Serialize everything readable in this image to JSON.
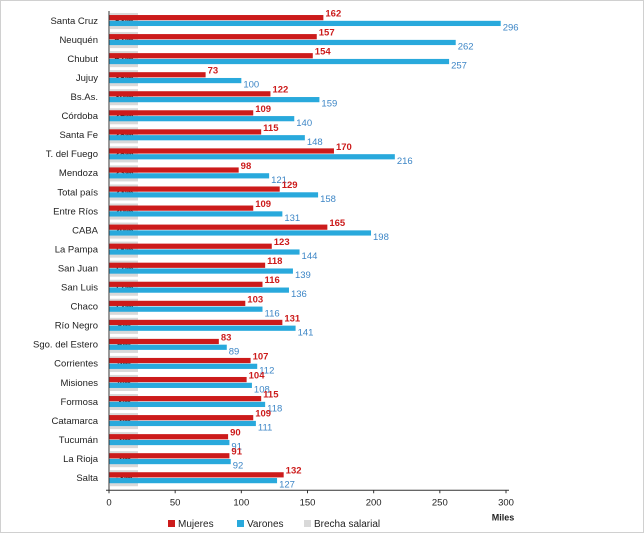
{
  "chart_data": {
    "type": "bar",
    "orientation": "horizontal",
    "categories": [
      "Santa Cruz",
      "Neuquén",
      "Chubut",
      "Jujuy",
      "Bs.As.",
      "Córdoba",
      "Santa Fe",
      "T. del Fuego",
      "Mendoza",
      "Total país",
      "Entre Ríos",
      "CABA",
      "La Pampa",
      "San Juan",
      "San Luis",
      "Chaco",
      "Río Negro",
      "Sgo. del Estero",
      "Corrientes",
      "Misiones",
      "Formosa",
      "Catamarca",
      "Tucumán",
      "La Rioja",
      "Salta"
    ],
    "series": [
      {
        "name": "Mujeres",
        "color": "#cc1b1b",
        "values": [
          162,
          157,
          154,
          73,
          122,
          109,
          115,
          170,
          98,
          129,
          109,
          165,
          123,
          118,
          116,
          103,
          131,
          83,
          107,
          104,
          115,
          109,
          90,
          91,
          132
        ]
      },
      {
        "name": "Varones",
        "color": "#29a9dc",
        "values": [
          296,
          262,
          257,
          100,
          159,
          140,
          148,
          216,
          121,
          158,
          131,
          198,
          144,
          139,
          136,
          116,
          141,
          89,
          112,
          108,
          118,
          111,
          91,
          92,
          127
        ]
      },
      {
        "name": "Brecha salarial",
        "color": "#d9d9d9",
        "values": [
          "83%",
          "67%",
          "67%",
          "38%",
          "30%",
          "29%",
          "28%",
          "28%",
          "23%",
          "23%",
          "20%",
          "20%",
          "18%",
          "17%",
          "17%",
          "12%",
          "8%",
          "6%",
          "5%",
          "4%",
          "3%",
          "2%",
          "2%",
          "2%",
          "-3%"
        ]
      }
    ],
    "xlim": [
      0,
      300
    ],
    "xticks": [
      "0",
      "50",
      "100",
      "150",
      "200",
      "250",
      "300"
    ],
    "xunit": "Miles",
    "grid": false,
    "legend_position": "bottom"
  }
}
